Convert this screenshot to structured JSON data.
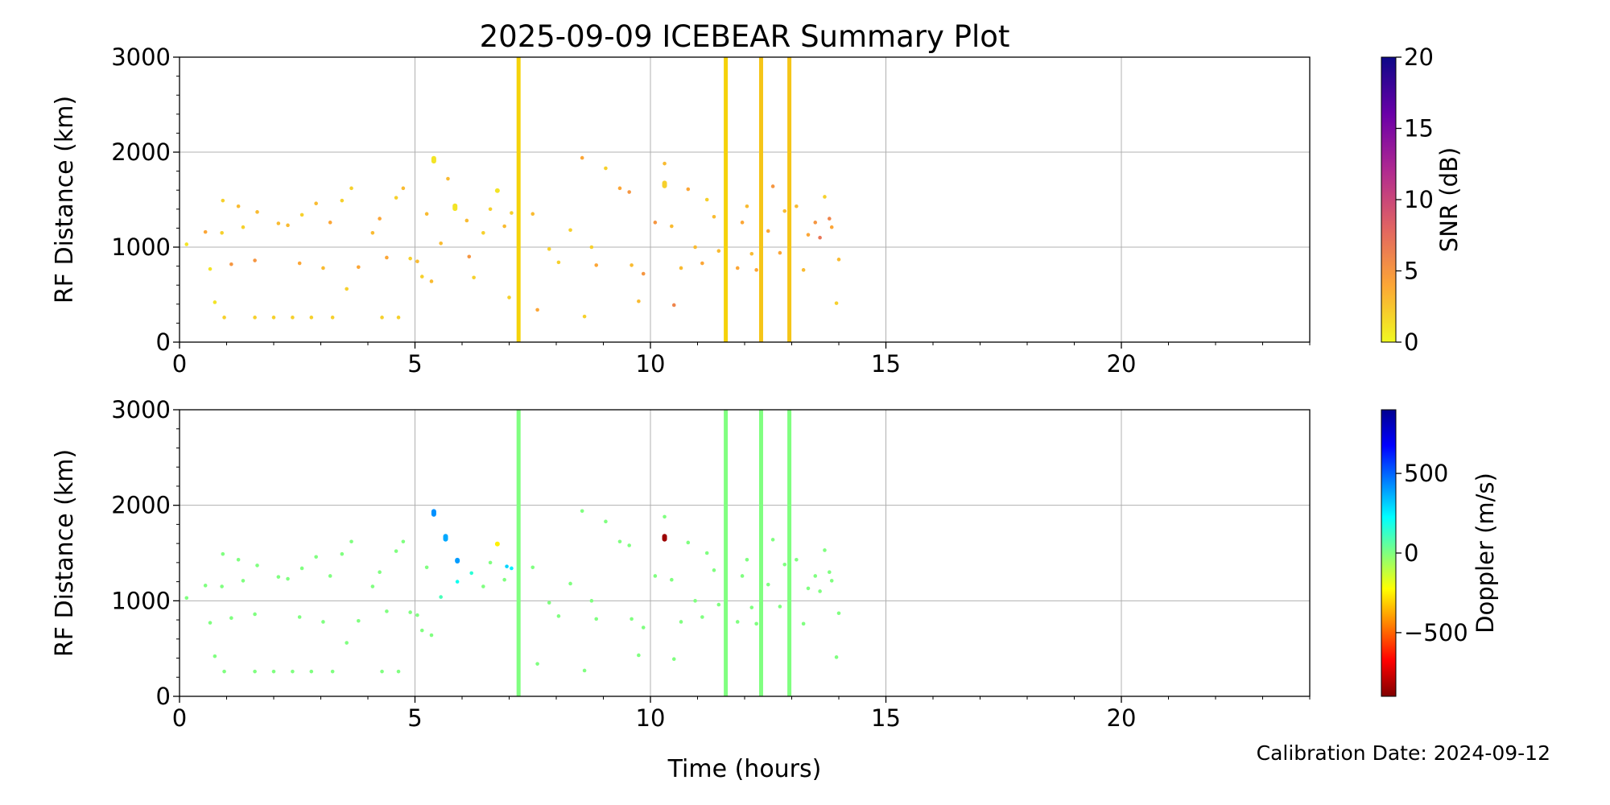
{
  "figure": {
    "title": "2025-09-09 ICEBEAR Summary Plot",
    "xlabel": "Time (hours)",
    "calibration_note": "Calibration Date: 2024-09-12"
  },
  "chart_data": [
    {
      "type": "scatter",
      "panel": "top",
      "xlabel": "",
      "ylabel": "RF Distance (km)",
      "xlim": [
        0,
        24
      ],
      "ylim": [
        0,
        3000
      ],
      "x_ticks": [
        0,
        5,
        10,
        15,
        20
      ],
      "y_ticks": [
        0,
        1000,
        2000,
        3000
      ],
      "grid": true,
      "color_variable": "SNR",
      "colorbar": {
        "label": "SNR (dB)",
        "min": 0,
        "max": 20,
        "ticks": [
          0,
          5,
          10,
          15,
          20
        ],
        "colormap": "plasma_r",
        "stops": [
          "#f0f921",
          "#fca636",
          "#e16462",
          "#b12a90",
          "#6a00a8",
          "#0d0887"
        ]
      },
      "vertical_streaks": [
        {
          "x": 7.2,
          "range": [
            0,
            3000
          ],
          "color": "#f5d20a"
        },
        {
          "x": 11.6,
          "range": [
            0,
            3000
          ],
          "color": "#f5d20a"
        },
        {
          "x": 12.35,
          "range": [
            0,
            3000
          ],
          "color": "#f5c518"
        },
        {
          "x": 12.95,
          "range": [
            0,
            3000
          ],
          "color": "#f5c518"
        }
      ],
      "clusters": [
        {
          "x": 5.4,
          "range": [
            1880,
            1960
          ],
          "value": 1
        },
        {
          "x": 5.85,
          "range": [
            1380,
            1460
          ],
          "value": 1
        },
        {
          "x": 6.75,
          "range": [
            1570,
            1620
          ],
          "value": 1
        },
        {
          "x": 10.3,
          "range": [
            1620,
            1700
          ],
          "value": 2
        }
      ],
      "points": [
        [
          0.15,
          1030,
          1
        ],
        [
          0.55,
          1160,
          4
        ],
        [
          0.65,
          770,
          1
        ],
        [
          0.75,
          420,
          1
        ],
        [
          0.9,
          1150,
          2
        ],
        [
          0.92,
          1490,
          2
        ],
        [
          0.95,
          260,
          2
        ],
        [
          1.1,
          820,
          5
        ],
        [
          1.25,
          1430,
          3
        ],
        [
          1.35,
          1210,
          2
        ],
        [
          1.6,
          260,
          2
        ],
        [
          1.6,
          860,
          5
        ],
        [
          1.65,
          1370,
          3
        ],
        [
          2.0,
          260,
          2
        ],
        [
          2.1,
          1250,
          3
        ],
        [
          2.3,
          1230,
          3
        ],
        [
          2.4,
          260,
          2
        ],
        [
          2.55,
          830,
          4
        ],
        [
          2.6,
          1340,
          2
        ],
        [
          2.8,
          260,
          2
        ],
        [
          2.9,
          1460,
          3
        ],
        [
          3.05,
          780,
          3
        ],
        [
          3.2,
          1260,
          4
        ],
        [
          3.25,
          260,
          2
        ],
        [
          3.45,
          1490,
          2
        ],
        [
          3.55,
          560,
          2
        ],
        [
          3.65,
          1620,
          2
        ],
        [
          3.8,
          790,
          4
        ],
        [
          4.1,
          1150,
          3
        ],
        [
          4.25,
          1300,
          4
        ],
        [
          4.3,
          260,
          2
        ],
        [
          4.4,
          890,
          4
        ],
        [
          4.6,
          1520,
          2
        ],
        [
          4.65,
          260,
          2
        ],
        [
          4.75,
          1620,
          3
        ],
        [
          4.9,
          880,
          2
        ],
        [
          5.05,
          850,
          3
        ],
        [
          5.15,
          690,
          2
        ],
        [
          5.25,
          1350,
          3
        ],
        [
          5.35,
          640,
          3
        ],
        [
          5.55,
          1040,
          3
        ],
        [
          5.7,
          1720,
          3
        ],
        [
          6.1,
          1280,
          3
        ],
        [
          6.15,
          900,
          5
        ],
        [
          6.25,
          680,
          2
        ],
        [
          6.45,
          1150,
          2
        ],
        [
          6.6,
          1400,
          2
        ],
        [
          6.9,
          1220,
          3
        ],
        [
          7.0,
          470,
          2
        ],
        [
          7.05,
          1360,
          2
        ],
        [
          7.5,
          1350,
          3
        ],
        [
          7.6,
          340,
          4
        ],
        [
          7.85,
          980,
          2
        ],
        [
          8.05,
          840,
          2
        ],
        [
          8.3,
          1180,
          2
        ],
        [
          8.55,
          1940,
          4
        ],
        [
          8.6,
          270,
          2
        ],
        [
          8.75,
          1000,
          2
        ],
        [
          8.85,
          810,
          4
        ],
        [
          9.05,
          1830,
          2
        ],
        [
          9.35,
          1620,
          4
        ],
        [
          9.55,
          1580,
          5
        ],
        [
          9.6,
          810,
          3
        ],
        [
          9.75,
          430,
          3
        ],
        [
          9.85,
          720,
          5
        ],
        [
          10.1,
          1260,
          5
        ],
        [
          10.3,
          1880,
          3
        ],
        [
          10.45,
          1220,
          3
        ],
        [
          10.5,
          390,
          6
        ],
        [
          10.65,
          780,
          3
        ],
        [
          10.8,
          1610,
          4
        ],
        [
          10.95,
          1000,
          3
        ],
        [
          11.1,
          830,
          4
        ],
        [
          11.2,
          1500,
          2
        ],
        [
          11.35,
          1320,
          3
        ],
        [
          11.45,
          960,
          3
        ],
        [
          11.85,
          780,
          4
        ],
        [
          11.95,
          1260,
          4
        ],
        [
          12.05,
          1430,
          3
        ],
        [
          12.15,
          930,
          3
        ],
        [
          12.25,
          760,
          4
        ],
        [
          12.5,
          1170,
          4
        ],
        [
          12.6,
          1640,
          5
        ],
        [
          12.75,
          940,
          4
        ],
        [
          12.85,
          1380,
          3
        ],
        [
          13.1,
          1430,
          3
        ],
        [
          13.25,
          760,
          3
        ],
        [
          13.35,
          1130,
          4
        ],
        [
          13.5,
          1260,
          5
        ],
        [
          13.6,
          1100,
          7
        ],
        [
          13.7,
          1530,
          2
        ],
        [
          13.8,
          1300,
          6
        ],
        [
          13.85,
          1210,
          4
        ],
        [
          13.95,
          410,
          2
        ],
        [
          14.0,
          870,
          3
        ]
      ]
    },
    {
      "type": "scatter",
      "panel": "bottom",
      "xlabel": "Time (hours)",
      "ylabel": "RF Distance (km)",
      "xlim": [
        0,
        24
      ],
      "ylim": [
        0,
        3000
      ],
      "x_ticks": [
        0,
        5,
        10,
        15,
        20
      ],
      "y_ticks": [
        0,
        1000,
        2000,
        3000
      ],
      "grid": true,
      "color_variable": "Doppler",
      "colorbar": {
        "label": "Doppler (m/s)",
        "min": -900,
        "max": 900,
        "ticks": [
          -500,
          0,
          500
        ],
        "tick_labels": [
          "−500",
          "0",
          "500"
        ],
        "colormap": "jet_r",
        "stops": [
          "#800000",
          "#ff0000",
          "#ff8000",
          "#ffff00",
          "#80ff80",
          "#00ffff",
          "#0080ff",
          "#0000ff",
          "#00008f"
        ]
      },
      "vertical_streaks": [
        {
          "x": 7.2,
          "range": [
            0,
            3000
          ],
          "color": "#80ff80"
        },
        {
          "x": 11.6,
          "range": [
            0,
            3000
          ],
          "color": "#80ff80"
        },
        {
          "x": 12.35,
          "range": [
            0,
            3000
          ],
          "color": "#80ff80"
        },
        {
          "x": 12.95,
          "range": [
            0,
            3000
          ],
          "color": "#80ff80"
        }
      ],
      "clusters": [
        {
          "x": 5.4,
          "range": [
            1880,
            1960
          ],
          "value": 420
        },
        {
          "x": 5.65,
          "range": [
            1620,
            1700
          ],
          "value": 380
        },
        {
          "x": 5.9,
          "range": [
            1390,
            1450
          ],
          "value": 400
        },
        {
          "x": 6.75,
          "range": [
            1570,
            1620
          ],
          "value": -250
        },
        {
          "x": 10.3,
          "range": [
            1620,
            1700
          ],
          "value": -850
        }
      ],
      "points": [
        [
          0.15,
          1030,
          0
        ],
        [
          0.55,
          1160,
          0
        ],
        [
          0.65,
          770,
          0
        ],
        [
          0.75,
          420,
          0
        ],
        [
          0.9,
          1150,
          0
        ],
        [
          0.92,
          1490,
          0
        ],
        [
          0.95,
          260,
          0
        ],
        [
          1.1,
          820,
          0
        ],
        [
          1.25,
          1430,
          0
        ],
        [
          1.35,
          1210,
          0
        ],
        [
          1.6,
          260,
          0
        ],
        [
          1.6,
          860,
          0
        ],
        [
          1.65,
          1370,
          0
        ],
        [
          2.0,
          260,
          0
        ],
        [
          2.1,
          1250,
          0
        ],
        [
          2.3,
          1230,
          0
        ],
        [
          2.4,
          260,
          0
        ],
        [
          2.55,
          830,
          0
        ],
        [
          2.6,
          1340,
          0
        ],
        [
          2.8,
          260,
          0
        ],
        [
          2.9,
          1460,
          0
        ],
        [
          3.05,
          780,
          0
        ],
        [
          3.2,
          1260,
          0
        ],
        [
          3.25,
          260,
          0
        ],
        [
          3.45,
          1490,
          0
        ],
        [
          3.55,
          560,
          0
        ],
        [
          3.65,
          1620,
          0
        ],
        [
          3.8,
          790,
          0
        ],
        [
          4.1,
          1150,
          0
        ],
        [
          4.25,
          1300,
          0
        ],
        [
          4.3,
          260,
          0
        ],
        [
          4.4,
          890,
          0
        ],
        [
          4.6,
          1520,
          0
        ],
        [
          4.65,
          260,
          0
        ],
        [
          4.75,
          1620,
          0
        ],
        [
          4.9,
          880,
          0
        ],
        [
          5.05,
          850,
          0
        ],
        [
          5.15,
          690,
          0
        ],
        [
          5.25,
          1350,
          0
        ],
        [
          5.35,
          640,
          0
        ],
        [
          5.55,
          1040,
          100
        ],
        [
          5.9,
          1200,
          200
        ],
        [
          6.2,
          1290,
          150
        ],
        [
          6.45,
          1150,
          0
        ],
        [
          6.6,
          1400,
          0
        ],
        [
          6.9,
          1220,
          0
        ],
        [
          6.95,
          1360,
          300
        ],
        [
          7.05,
          1340,
          250
        ],
        [
          7.5,
          1350,
          0
        ],
        [
          7.6,
          340,
          0
        ],
        [
          7.85,
          980,
          0
        ],
        [
          8.05,
          840,
          0
        ],
        [
          8.3,
          1180,
          0
        ],
        [
          8.55,
          1940,
          0
        ],
        [
          8.6,
          270,
          0
        ],
        [
          8.75,
          1000,
          0
        ],
        [
          8.85,
          810,
          0
        ],
        [
          9.05,
          1830,
          0
        ],
        [
          9.35,
          1620,
          0
        ],
        [
          9.55,
          1580,
          0
        ],
        [
          9.6,
          810,
          0
        ],
        [
          9.75,
          430,
          0
        ],
        [
          9.85,
          720,
          0
        ],
        [
          10.1,
          1260,
          0
        ],
        [
          10.3,
          1880,
          0
        ],
        [
          10.45,
          1220,
          0
        ],
        [
          10.5,
          390,
          0
        ],
        [
          10.65,
          780,
          0
        ],
        [
          10.8,
          1610,
          0
        ],
        [
          10.95,
          1000,
          0
        ],
        [
          11.1,
          830,
          0
        ],
        [
          11.2,
          1500,
          0
        ],
        [
          11.35,
          1320,
          0
        ],
        [
          11.45,
          960,
          0
        ],
        [
          11.85,
          780,
          0
        ],
        [
          11.95,
          1260,
          0
        ],
        [
          12.05,
          1430,
          0
        ],
        [
          12.15,
          930,
          0
        ],
        [
          12.25,
          760,
          0
        ],
        [
          12.5,
          1170,
          0
        ],
        [
          12.6,
          1640,
          0
        ],
        [
          12.75,
          940,
          0
        ],
        [
          12.85,
          1380,
          0
        ],
        [
          13.1,
          1430,
          0
        ],
        [
          13.25,
          760,
          0
        ],
        [
          13.35,
          1130,
          0
        ],
        [
          13.5,
          1260,
          0
        ],
        [
          13.6,
          1100,
          0
        ],
        [
          13.7,
          1530,
          0
        ],
        [
          13.8,
          1300,
          0
        ],
        [
          13.85,
          1210,
          0
        ],
        [
          13.95,
          410,
          0
        ],
        [
          14.0,
          870,
          0
        ]
      ]
    }
  ]
}
